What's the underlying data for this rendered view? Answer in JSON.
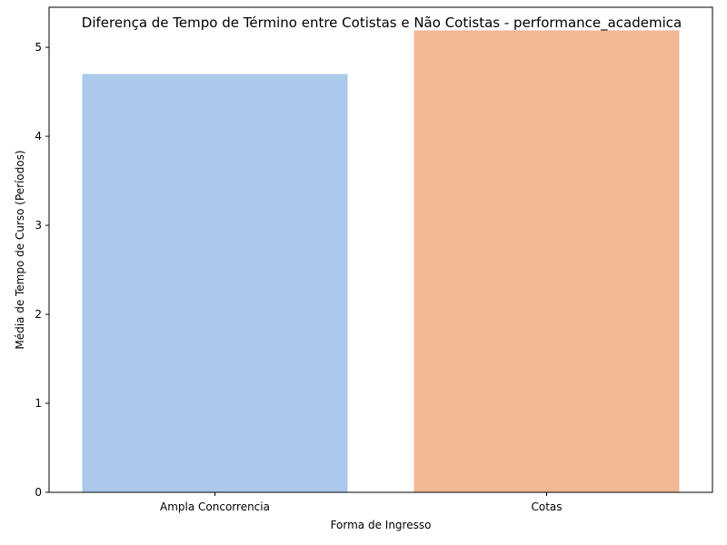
{
  "chart_data": {
    "type": "bar",
    "title": "Diferença de Tempo de Término entre Cotistas e Não Cotistas - performance_academica",
    "xlabel": "Forma de Ingresso",
    "ylabel": "Média de Tempo de Curso (Períodos)",
    "categories": [
      "Ampla Concorrencia",
      "Cotas"
    ],
    "values": [
      4.7,
      5.19
    ],
    "colors": [
      "#abc9eb",
      "#f1b894"
    ],
    "ylim": [
      0,
      5.45
    ],
    "yticks": [
      "0",
      "1",
      "2",
      "3",
      "4",
      "5"
    ],
    "grid": false,
    "legend": "none"
  }
}
